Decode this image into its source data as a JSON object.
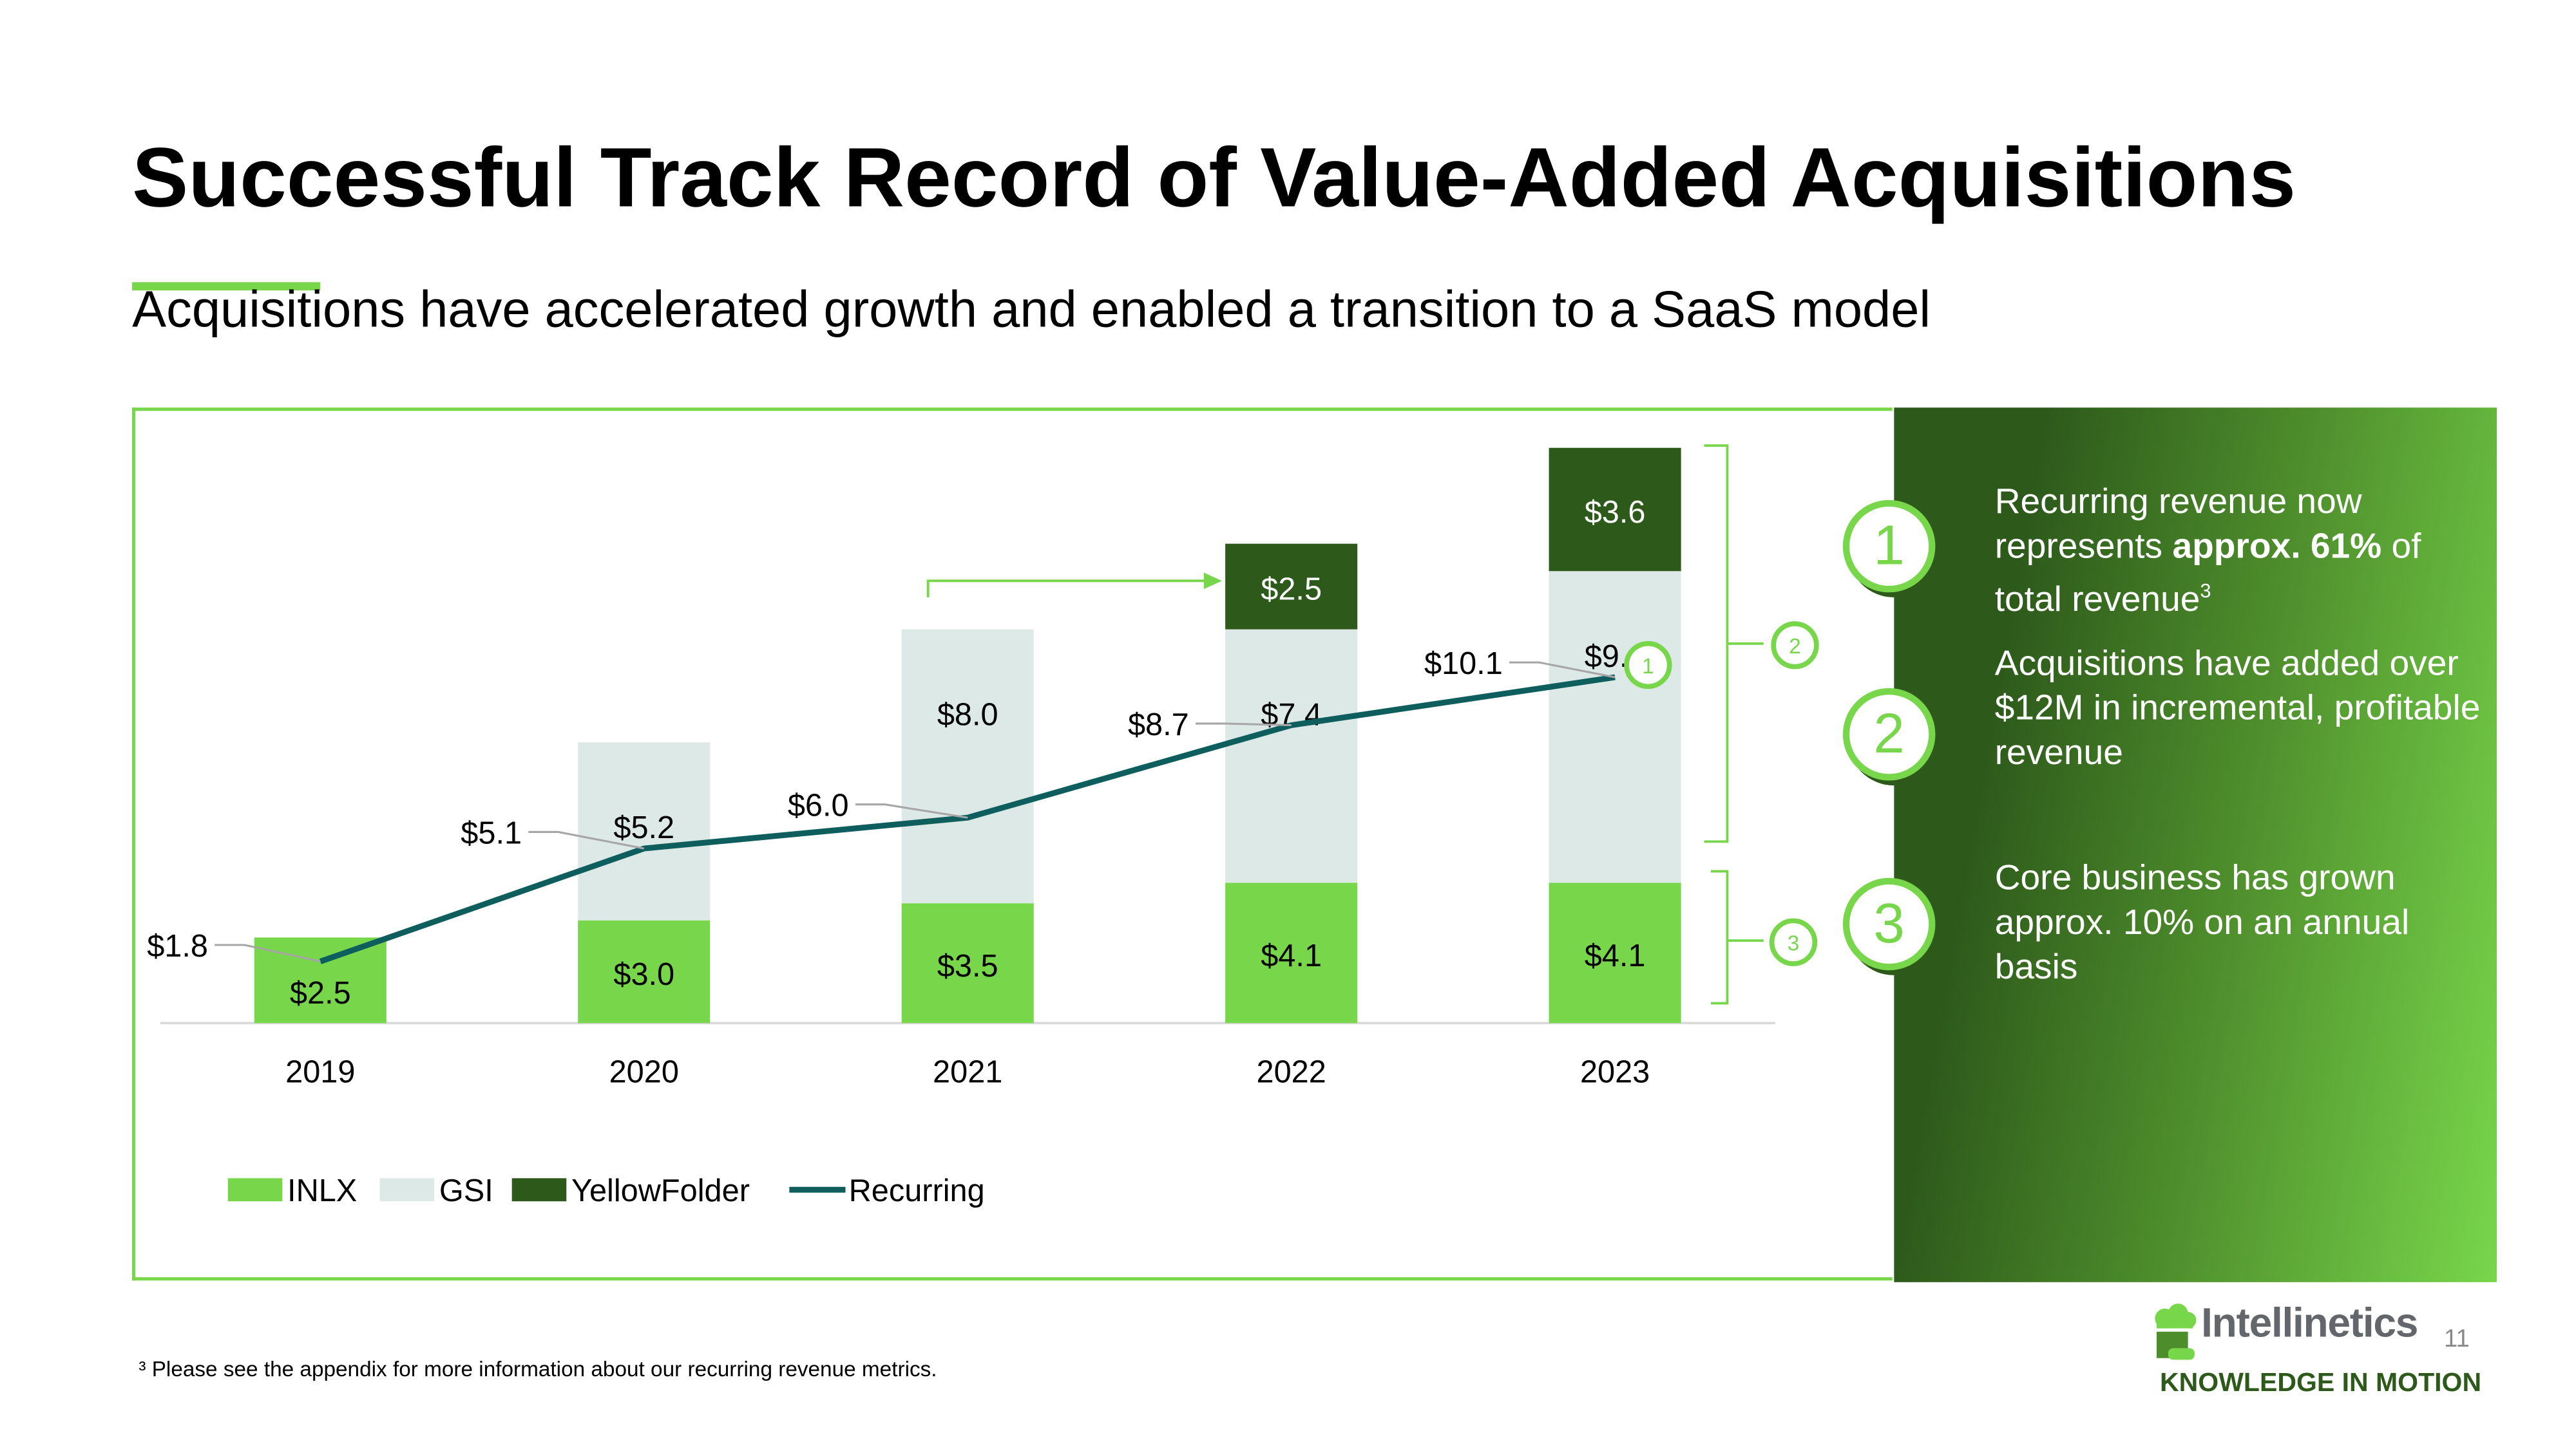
{
  "title": "Successful Track Record of Value-Added Acquisitions",
  "subtitle": "Acquisitions have accelerated growth and enabled a transition to a SaaS model",
  "panel": {
    "points": [
      {
        "num": "1",
        "pre": "Recurring revenue now represents ",
        "bold": "approx. 61%",
        "post": " of total revenue",
        "sup": "3"
      },
      {
        "num": "2",
        "text": "Acquisitions have added over $12M in incremental, profitable revenue"
      },
      {
        "num": "3",
        "text": "Core business has grown approx. 10% on an annual basis"
      }
    ]
  },
  "footnote": "³ Please see the appendix for more information about our recurring revenue metrics.",
  "brand": {
    "name": "Intellinetics",
    "tagline": "KNOWLEDGE IN MOTION",
    "page": "11"
  },
  "colors": {
    "inlx": "#78d64b",
    "gsi": "#dce9e6",
    "yellowfolder": "#2d5a1b",
    "recurring": "#0e5e5e"
  },
  "chart_data": {
    "type": "bar",
    "stacked": true,
    "categories": [
      "2019",
      "2020",
      "2021",
      "2022",
      "2023"
    ],
    "series": [
      {
        "name": "INLX",
        "values": [
          2.5,
          3.0,
          3.5,
          4.1,
          4.1
        ],
        "labels": [
          "$2.5",
          "$3.0",
          "$3.5",
          "$4.1",
          "$4.1"
        ]
      },
      {
        "name": "GSI",
        "values": [
          0,
          5.2,
          8.0,
          7.4,
          9.1
        ],
        "labels": [
          "",
          "$5.2",
          "$8.0",
          "$7.4",
          "$9.1"
        ]
      },
      {
        "name": "YellowFolder",
        "values": [
          0,
          0,
          0,
          2.5,
          3.6
        ],
        "labels": [
          "",
          "",
          "",
          "$2.5",
          "$3.6"
        ]
      },
      {
        "name": "Recurring",
        "type": "line",
        "values": [
          1.8,
          5.1,
          6.0,
          8.7,
          10.1
        ],
        "labels": [
          "$1.8",
          "$5.1",
          "$6.0",
          "$8.7",
          "$10.1"
        ]
      }
    ],
    "callouts": [
      "1",
      "2",
      "3"
    ],
    "legend": "bottom-left",
    "ylim": [
      0,
      17
    ]
  }
}
